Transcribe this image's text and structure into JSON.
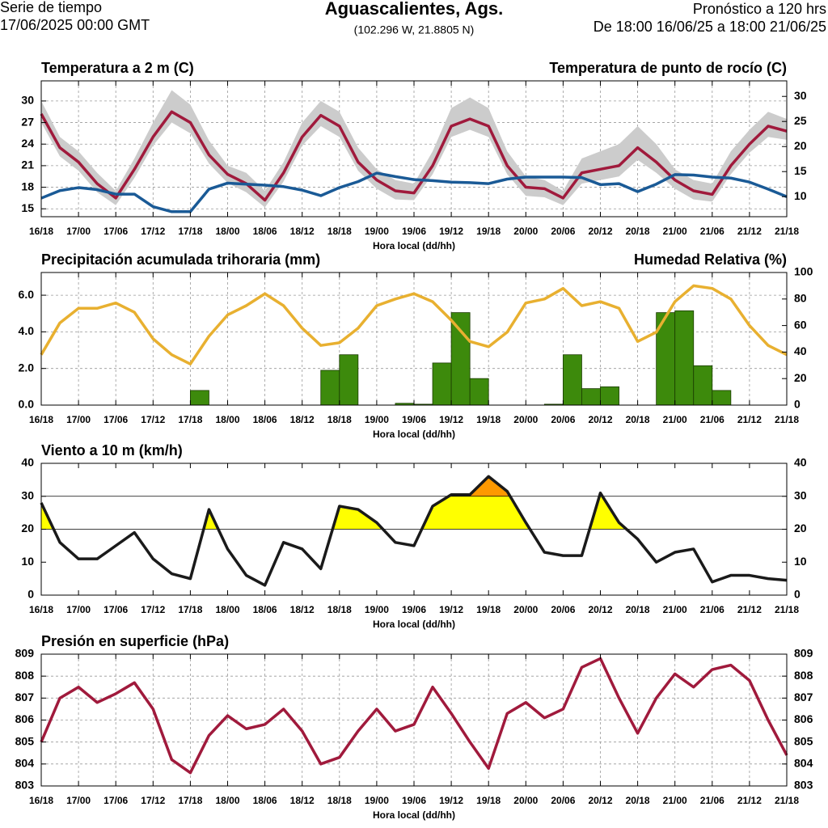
{
  "header": {
    "left_top": "Serie de tiempo",
    "left_bottom": "17/06/2025 00:00 GMT",
    "title": "Aguascalientes, Ags.",
    "subtitle": "(102.296 W, 21.8805 N)",
    "right_top": "Pronóstico a 120 hrs",
    "right_bottom": "De 18:00 16/06/25 a 18:00 21/06/25"
  },
  "x_axis": {
    "xlim": [
      0,
      120
    ],
    "xlabel": "Hora local (dd/hh)",
    "x": [
      0,
      3,
      6,
      9,
      12,
      15,
      18,
      21,
      24,
      27,
      30,
      33,
      36,
      39,
      42,
      45,
      48,
      51,
      54,
      57,
      60,
      63,
      66,
      69,
      72,
      75,
      78,
      81,
      84,
      87,
      90,
      93,
      96,
      99,
      102,
      105,
      108,
      111,
      114,
      117,
      120
    ],
    "xticks": [
      {
        "value": 0,
        "label": "16/18"
      },
      {
        "value": 6,
        "label": "17/00"
      },
      {
        "value": 12,
        "label": "17/06"
      },
      {
        "value": 18,
        "label": "17/12"
      },
      {
        "value": 24,
        "label": "17/18"
      },
      {
        "value": 30,
        "label": "18/00"
      },
      {
        "value": 36,
        "label": "18/06"
      },
      {
        "value": 42,
        "label": "18/12"
      },
      {
        "value": 48,
        "label": "18/18"
      },
      {
        "value": 54,
        "label": "19/00"
      },
      {
        "value": 60,
        "label": "19/06"
      },
      {
        "value": 66,
        "label": "19/12"
      },
      {
        "value": 72,
        "label": "19/18"
      },
      {
        "value": 78,
        "label": "20/00"
      },
      {
        "value": 84,
        "label": "20/06"
      },
      {
        "value": 90,
        "label": "20/12"
      },
      {
        "value": 96,
        "label": "20/18"
      },
      {
        "value": 102,
        "label": "21/00"
      },
      {
        "value": 108,
        "label": "21/06"
      },
      {
        "value": 114,
        "label": "21/12"
      },
      {
        "value": 120,
        "label": "21/18"
      }
    ]
  },
  "chart_data": [
    {
      "type": "line",
      "grid": true,
      "ylim": [
        13.9,
        32.8
      ],
      "yticks": [
        15,
        18,
        21,
        24,
        27,
        30
      ],
      "y2lim": [
        6,
        33.1
      ],
      "y2ticks": [
        10,
        15,
        20,
        25,
        30
      ],
      "band": {
        "color": "#cccccc",
        "high": [
          30,
          25,
          23,
          20,
          17.5,
          22,
          27,
          31.5,
          29.5,
          24.5,
          21,
          20,
          17.5,
          21.5,
          27,
          30,
          28.5,
          23.5,
          20.5,
          19,
          18.5,
          23,
          29,
          30.5,
          29,
          23,
          19.5,
          19,
          17.5,
          22,
          23,
          24,
          26.5,
          24,
          20.5,
          19,
          18.5,
          23,
          26,
          28.5,
          27.5
        ],
        "low": [
          27,
          22.3,
          20.3,
          17.3,
          15.5,
          19.3,
          23.8,
          27,
          25.5,
          21.3,
          18.6,
          17.3,
          15.2,
          18.8,
          23.8,
          26.5,
          25,
          20.3,
          17.8,
          16.3,
          16.2,
          19.8,
          25,
          26,
          25,
          19.8,
          16.8,
          16.6,
          15.5,
          18.5,
          19,
          19.5,
          21.8,
          20,
          17.8,
          16.3,
          16,
          19.8,
          22.8,
          25,
          24.6
        ]
      },
      "series": [
        {
          "name": "Temperatura a 2 m (C)",
          "color": "#a01a3c",
          "type": "line",
          "values": [
            28.2,
            23.5,
            21.5,
            18.5,
            16.5,
            20.5,
            25,
            28.5,
            27,
            22.5,
            19.8,
            18.5,
            16.2,
            20,
            25,
            28,
            26.5,
            21.5,
            19,
            17.5,
            17.2,
            21,
            26.5,
            27.5,
            26.5,
            21,
            18,
            17.8,
            16.5,
            20,
            20.5,
            21,
            23.5,
            21.5,
            19,
            17.5,
            17,
            21,
            24,
            26.5,
            25.8
          ]
        },
        {
          "name": "Temperatura de punto de rocío (C)",
          "color": "#1a5a96",
          "type": "line",
          "axis": "y2",
          "values": [
            9.7,
            11.2,
            11.8,
            11.4,
            10.5,
            10.5,
            8,
            7,
            7,
            11.5,
            12.7,
            12.5,
            12.3,
            12,
            11.3,
            10.2,
            11.8,
            13,
            14.7,
            14,
            13.4,
            13.2,
            12.9,
            12.8,
            12.6,
            13.5,
            13.9,
            13.9,
            13.9,
            13.8,
            12.4,
            12.6,
            11,
            12.5,
            14.4,
            14.3,
            13.9,
            13.7,
            12.9,
            11.5,
            10
          ]
        }
      ]
    },
    {
      "type": "combo",
      "grid": true,
      "ylim": [
        0,
        7.24
      ],
      "yticks": [
        {
          "value": 0,
          "label": "0.0"
        },
        {
          "value": 2,
          "label": "2.0"
        },
        {
          "value": 4,
          "label": "4.0"
        },
        {
          "value": 6,
          "label": "6.0"
        }
      ],
      "y2lim": [
        0,
        100
      ],
      "y2ticks": [
        0,
        20,
        40,
        60,
        80,
        100
      ],
      "series": [
        {
          "name": "Precipitación acumulada trihoraria (mm)",
          "color": "#3d8a0c",
          "type": "bar",
          "bins": [
            0,
            3,
            6,
            9,
            12,
            15,
            18,
            21,
            24,
            27,
            30,
            33,
            36,
            39,
            42,
            45,
            48,
            51,
            54,
            57,
            60,
            63,
            66,
            69,
            72,
            75,
            78,
            81,
            84,
            87,
            90,
            93,
            96,
            99,
            102,
            105,
            108,
            111,
            114,
            117,
            120
          ],
          "values": [
            0,
            0,
            0,
            0,
            0,
            0,
            0,
            0,
            0.8,
            0,
            0,
            0,
            0,
            0,
            0,
            1.9,
            2.75,
            0,
            0,
            0.1,
            0.05,
            2.3,
            5.05,
            1.45,
            0,
            0,
            0,
            0.05,
            2.75,
            0.9,
            1.0,
            0,
            0,
            5.05,
            5.15,
            2.15,
            0.8,
            0,
            0,
            0
          ]
        },
        {
          "name": "Humedad Relativa (%)",
          "color": "#e8b030",
          "type": "line",
          "axis": "y2",
          "values": [
            38,
            62,
            73,
            73,
            77,
            70,
            50,
            38,
            31,
            52,
            68,
            75,
            84,
            75,
            58,
            45,
            47,
            58,
            75,
            80,
            84,
            78,
            64,
            48,
            44,
            55,
            77,
            80,
            88,
            75,
            78,
            73,
            48,
            55,
            78,
            90,
            88,
            80,
            60,
            45,
            38
          ]
        }
      ]
    },
    {
      "type": "line",
      "grid": false,
      "mirror_y": true,
      "ylim": [
        0,
        40
      ],
      "yticks": [
        0,
        10,
        20,
        30,
        40
      ],
      "thresholds": [
        20,
        30
      ],
      "threshold_colors": [
        "#ffff00",
        "#ff9900"
      ],
      "series": [
        {
          "name": "Viento a 10 m (km/h)",
          "color": "#1a1a1a",
          "type": "line",
          "values": [
            28,
            16,
            11,
            11,
            15,
            19,
            11,
            6.5,
            5,
            26,
            14,
            6,
            3,
            16,
            14,
            8,
            27,
            26,
            22,
            16,
            15,
            27,
            30.5,
            30.5,
            36,
            31.5,
            22,
            13,
            12,
            12,
            31,
            22,
            17,
            10,
            13,
            14,
            4,
            6,
            6,
            5,
            4.5
          ]
        }
      ]
    },
    {
      "type": "line",
      "grid": true,
      "mirror_y": true,
      "ylim": [
        803,
        809
      ],
      "yticks": [
        803,
        804,
        805,
        806,
        807,
        808,
        809
      ],
      "series": [
        {
          "name": "Presión en superficie (hPa)",
          "color": "#a01a3c",
          "type": "line",
          "values": [
            805,
            807,
            807.5,
            806.8,
            807.2,
            807.7,
            806.5,
            804.2,
            803.6,
            805.3,
            806.2,
            805.6,
            805.8,
            806.5,
            805.5,
            804,
            804.3,
            805.5,
            806.5,
            805.5,
            805.8,
            807.5,
            806.3,
            805,
            803.8,
            806.3,
            806.8,
            806.1,
            806.5,
            808.4,
            808.8,
            807,
            805.4,
            807,
            808.1,
            807.5,
            808.3,
            808.5,
            807.8,
            806,
            804.4
          ]
        }
      ]
    }
  ]
}
